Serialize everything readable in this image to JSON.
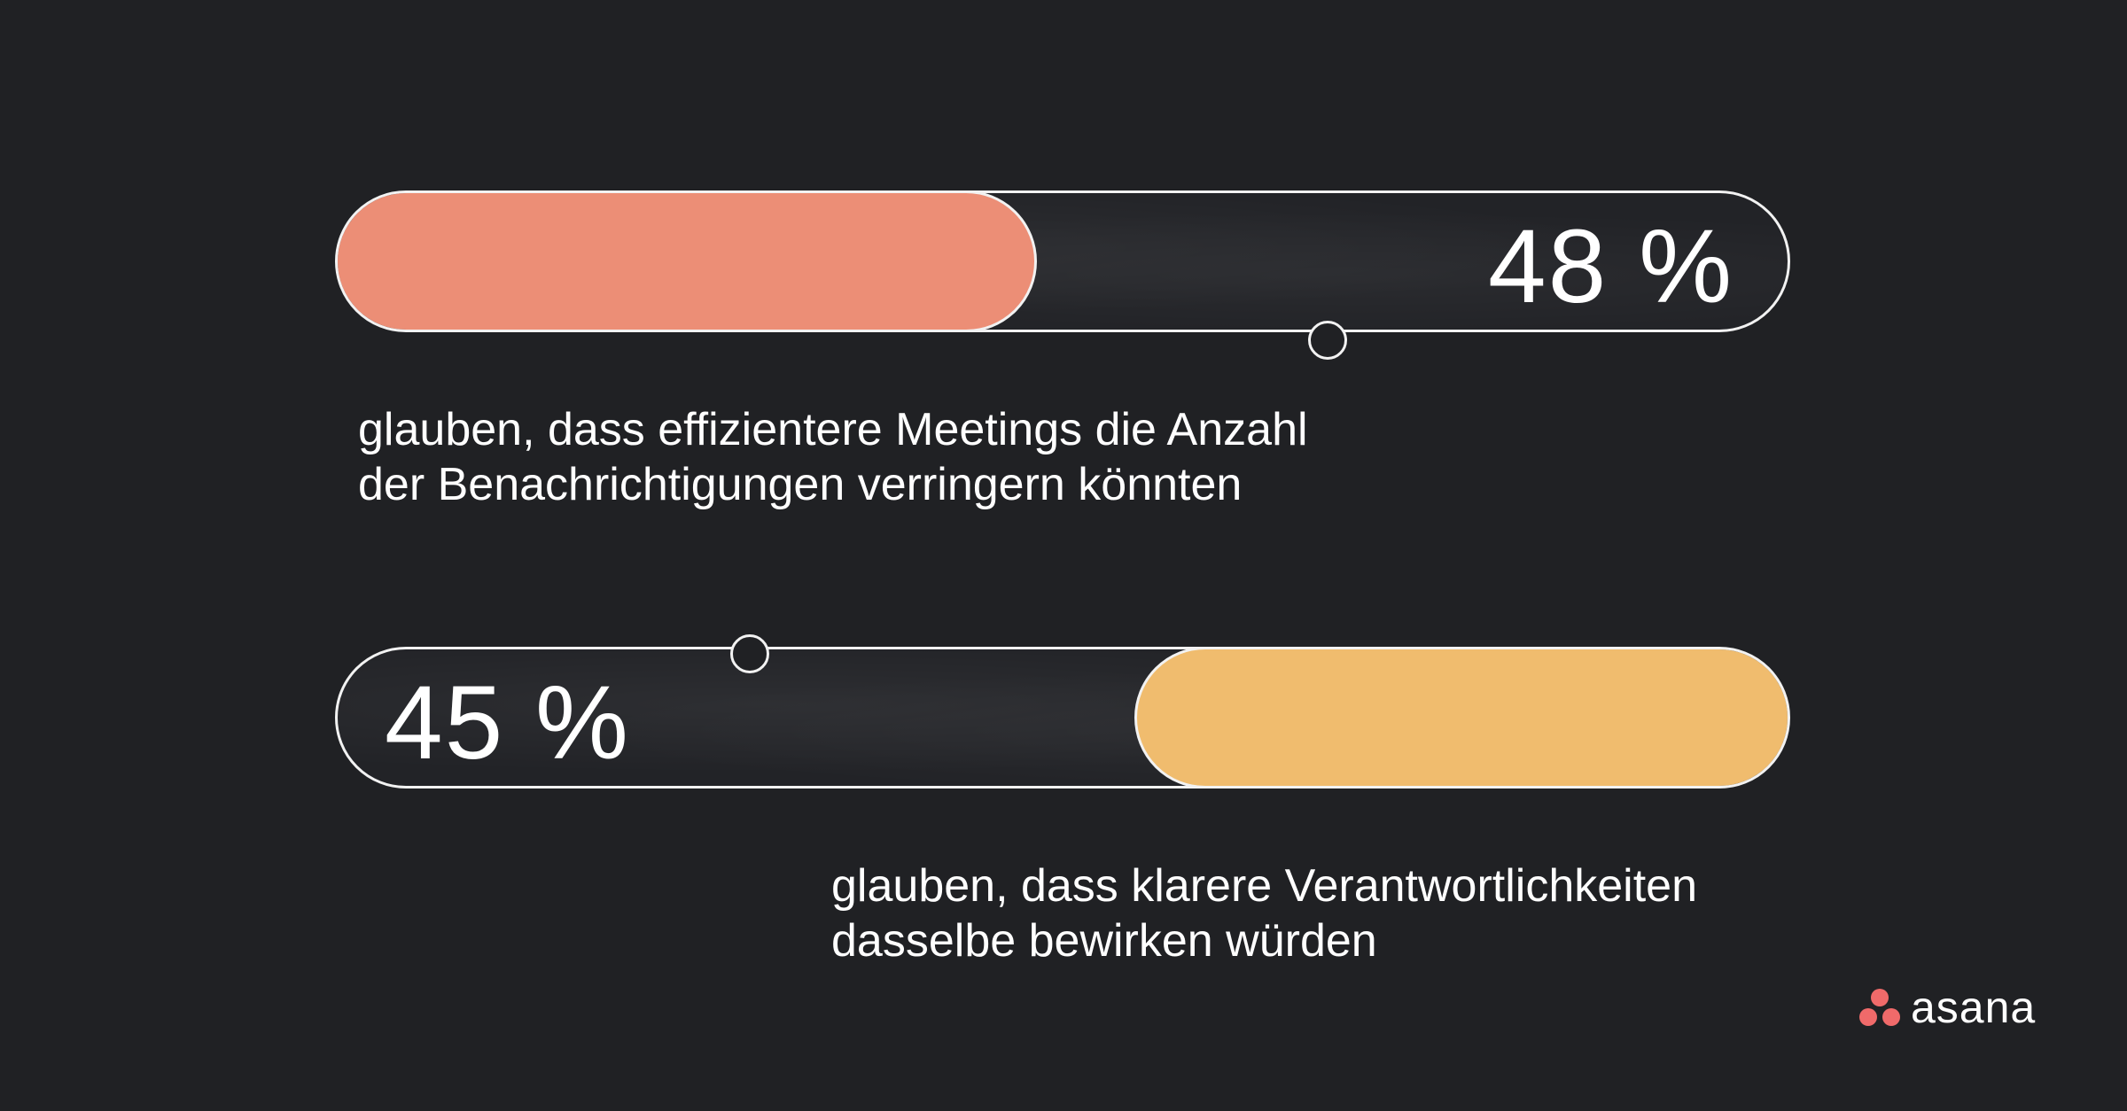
{
  "colors": {
    "background": "#202124",
    "outline": "#f2f2f2",
    "bar1_fill": "#ec8e76",
    "bar2_fill": "#f0bc6e",
    "logo_dots": "#f06a6a",
    "text": "#ffffff"
  },
  "stats": [
    {
      "value": 48,
      "value_label": "48 %",
      "caption_line1": "glauben, dass effizientere Meetings die Anzahl",
      "caption_line2": "der Benachrichtigungen verringern könnten"
    },
    {
      "value": 45,
      "value_label": "45 %",
      "caption_line1": "glauben, dass klarere Verantwortlichkeiten",
      "caption_line2": "dasselbe bewirken würden"
    }
  ],
  "brand": {
    "logo_text": "asana",
    "logo_icon": "asana-three-dots-icon"
  }
}
